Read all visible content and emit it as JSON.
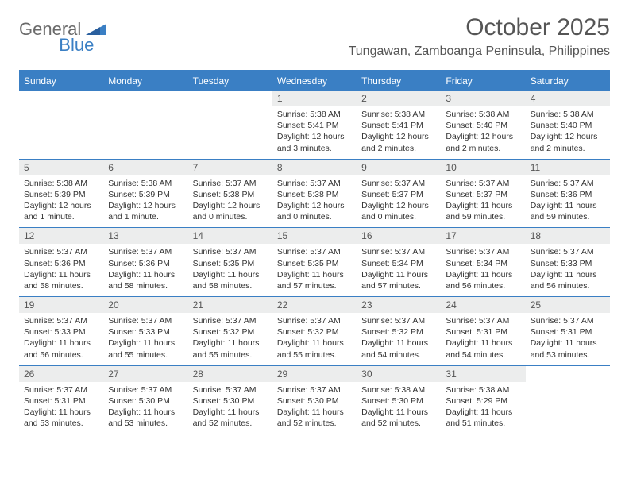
{
  "logo": {
    "part1": "General",
    "part2": "Blue"
  },
  "title": "October 2025",
  "location": "Tungawan, Zamboanga Peninsula, Philippines",
  "colors": {
    "accent": "#3a7fc4",
    "header_bg": "#3a7fc4",
    "daynum_bg": "#eceded",
    "text": "#333333",
    "muted": "#555555"
  },
  "weekdays": [
    "Sunday",
    "Monday",
    "Tuesday",
    "Wednesday",
    "Thursday",
    "Friday",
    "Saturday"
  ],
  "weeks": [
    [
      {
        "n": "",
        "sunrise": "",
        "sunset": "",
        "daylight": ""
      },
      {
        "n": "",
        "sunrise": "",
        "sunset": "",
        "daylight": ""
      },
      {
        "n": "",
        "sunrise": "",
        "sunset": "",
        "daylight": ""
      },
      {
        "n": "1",
        "sunrise": "Sunrise: 5:38 AM",
        "sunset": "Sunset: 5:41 PM",
        "daylight": "Daylight: 12 hours and 3 minutes."
      },
      {
        "n": "2",
        "sunrise": "Sunrise: 5:38 AM",
        "sunset": "Sunset: 5:41 PM",
        "daylight": "Daylight: 12 hours and 2 minutes."
      },
      {
        "n": "3",
        "sunrise": "Sunrise: 5:38 AM",
        "sunset": "Sunset: 5:40 PM",
        "daylight": "Daylight: 12 hours and 2 minutes."
      },
      {
        "n": "4",
        "sunrise": "Sunrise: 5:38 AM",
        "sunset": "Sunset: 5:40 PM",
        "daylight": "Daylight: 12 hours and 2 minutes."
      }
    ],
    [
      {
        "n": "5",
        "sunrise": "Sunrise: 5:38 AM",
        "sunset": "Sunset: 5:39 PM",
        "daylight": "Daylight: 12 hours and 1 minute."
      },
      {
        "n": "6",
        "sunrise": "Sunrise: 5:38 AM",
        "sunset": "Sunset: 5:39 PM",
        "daylight": "Daylight: 12 hours and 1 minute."
      },
      {
        "n": "7",
        "sunrise": "Sunrise: 5:37 AM",
        "sunset": "Sunset: 5:38 PM",
        "daylight": "Daylight: 12 hours and 0 minutes."
      },
      {
        "n": "8",
        "sunrise": "Sunrise: 5:37 AM",
        "sunset": "Sunset: 5:38 PM",
        "daylight": "Daylight: 12 hours and 0 minutes."
      },
      {
        "n": "9",
        "sunrise": "Sunrise: 5:37 AM",
        "sunset": "Sunset: 5:37 PM",
        "daylight": "Daylight: 12 hours and 0 minutes."
      },
      {
        "n": "10",
        "sunrise": "Sunrise: 5:37 AM",
        "sunset": "Sunset: 5:37 PM",
        "daylight": "Daylight: 11 hours and 59 minutes."
      },
      {
        "n": "11",
        "sunrise": "Sunrise: 5:37 AM",
        "sunset": "Sunset: 5:36 PM",
        "daylight": "Daylight: 11 hours and 59 minutes."
      }
    ],
    [
      {
        "n": "12",
        "sunrise": "Sunrise: 5:37 AM",
        "sunset": "Sunset: 5:36 PM",
        "daylight": "Daylight: 11 hours and 58 minutes."
      },
      {
        "n": "13",
        "sunrise": "Sunrise: 5:37 AM",
        "sunset": "Sunset: 5:36 PM",
        "daylight": "Daylight: 11 hours and 58 minutes."
      },
      {
        "n": "14",
        "sunrise": "Sunrise: 5:37 AM",
        "sunset": "Sunset: 5:35 PM",
        "daylight": "Daylight: 11 hours and 58 minutes."
      },
      {
        "n": "15",
        "sunrise": "Sunrise: 5:37 AM",
        "sunset": "Sunset: 5:35 PM",
        "daylight": "Daylight: 11 hours and 57 minutes."
      },
      {
        "n": "16",
        "sunrise": "Sunrise: 5:37 AM",
        "sunset": "Sunset: 5:34 PM",
        "daylight": "Daylight: 11 hours and 57 minutes."
      },
      {
        "n": "17",
        "sunrise": "Sunrise: 5:37 AM",
        "sunset": "Sunset: 5:34 PM",
        "daylight": "Daylight: 11 hours and 56 minutes."
      },
      {
        "n": "18",
        "sunrise": "Sunrise: 5:37 AM",
        "sunset": "Sunset: 5:33 PM",
        "daylight": "Daylight: 11 hours and 56 minutes."
      }
    ],
    [
      {
        "n": "19",
        "sunrise": "Sunrise: 5:37 AM",
        "sunset": "Sunset: 5:33 PM",
        "daylight": "Daylight: 11 hours and 56 minutes."
      },
      {
        "n": "20",
        "sunrise": "Sunrise: 5:37 AM",
        "sunset": "Sunset: 5:33 PM",
        "daylight": "Daylight: 11 hours and 55 minutes."
      },
      {
        "n": "21",
        "sunrise": "Sunrise: 5:37 AM",
        "sunset": "Sunset: 5:32 PM",
        "daylight": "Daylight: 11 hours and 55 minutes."
      },
      {
        "n": "22",
        "sunrise": "Sunrise: 5:37 AM",
        "sunset": "Sunset: 5:32 PM",
        "daylight": "Daylight: 11 hours and 55 minutes."
      },
      {
        "n": "23",
        "sunrise": "Sunrise: 5:37 AM",
        "sunset": "Sunset: 5:32 PM",
        "daylight": "Daylight: 11 hours and 54 minutes."
      },
      {
        "n": "24",
        "sunrise": "Sunrise: 5:37 AM",
        "sunset": "Sunset: 5:31 PM",
        "daylight": "Daylight: 11 hours and 54 minutes."
      },
      {
        "n": "25",
        "sunrise": "Sunrise: 5:37 AM",
        "sunset": "Sunset: 5:31 PM",
        "daylight": "Daylight: 11 hours and 53 minutes."
      }
    ],
    [
      {
        "n": "26",
        "sunrise": "Sunrise: 5:37 AM",
        "sunset": "Sunset: 5:31 PM",
        "daylight": "Daylight: 11 hours and 53 minutes."
      },
      {
        "n": "27",
        "sunrise": "Sunrise: 5:37 AM",
        "sunset": "Sunset: 5:30 PM",
        "daylight": "Daylight: 11 hours and 53 minutes."
      },
      {
        "n": "28",
        "sunrise": "Sunrise: 5:37 AM",
        "sunset": "Sunset: 5:30 PM",
        "daylight": "Daylight: 11 hours and 52 minutes."
      },
      {
        "n": "29",
        "sunrise": "Sunrise: 5:37 AM",
        "sunset": "Sunset: 5:30 PM",
        "daylight": "Daylight: 11 hours and 52 minutes."
      },
      {
        "n": "30",
        "sunrise": "Sunrise: 5:38 AM",
        "sunset": "Sunset: 5:30 PM",
        "daylight": "Daylight: 11 hours and 52 minutes."
      },
      {
        "n": "31",
        "sunrise": "Sunrise: 5:38 AM",
        "sunset": "Sunset: 5:29 PM",
        "daylight": "Daylight: 11 hours and 51 minutes."
      },
      {
        "n": "",
        "sunrise": "",
        "sunset": "",
        "daylight": ""
      }
    ]
  ]
}
